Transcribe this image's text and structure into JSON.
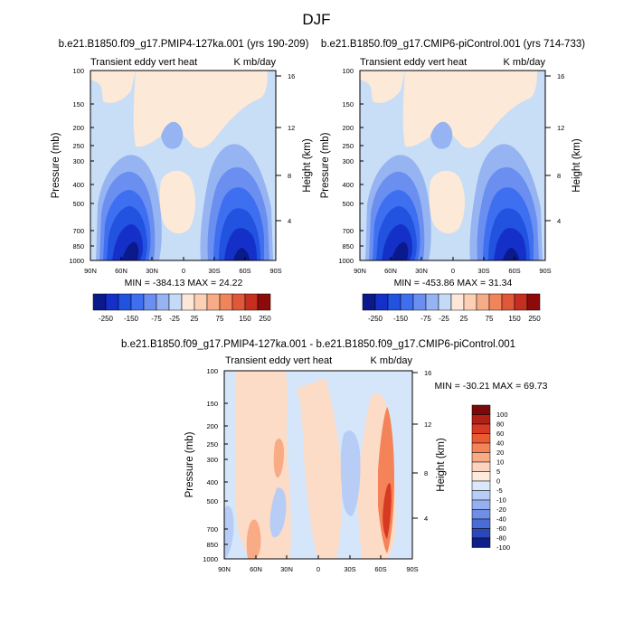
{
  "figure_title": "DJF",
  "chart_data": [
    {
      "type": "heatmap",
      "title": "b.e21.B1850.f09_g17.PMIP4-127ka.001 (yrs 190-209)",
      "left_subtitle": "Transient eddy vert heat",
      "right_subtitle": "K mb/day",
      "ylabel": "Pressure (mb)",
      "y2label": "Height (km)",
      "x_ticks": [
        "90N",
        "60N",
        "30N",
        "0",
        "30S",
        "60S",
        "90S"
      ],
      "y_ticks": [
        "100",
        "150",
        "200",
        "250",
        "300",
        "400",
        "500",
        "700",
        "850",
        "1000"
      ],
      "y2_ticks": [
        "4",
        "8",
        "12",
        "16"
      ],
      "stats": "MIN = -384.13   MAX =  24.22",
      "colorbar_labels": [
        "-250",
        "-150",
        "-75",
        "-25",
        "25",
        "75",
        "150",
        "250"
      ]
    },
    {
      "type": "heatmap",
      "title": "b.e21.B1850.f09_g17.CMIP6-piControl.001 (yrs 714-733)",
      "left_subtitle": "Transient eddy vert heat",
      "right_subtitle": "K mb/day",
      "ylabel": "Pressure (mb)",
      "y2label": "Height (km)",
      "x_ticks": [
        "90N",
        "60N",
        "30N",
        "0",
        "30S",
        "60S",
        "90S"
      ],
      "y_ticks": [
        "100",
        "150",
        "200",
        "250",
        "300",
        "400",
        "500",
        "700",
        "850",
        "1000"
      ],
      "y2_ticks": [
        "4",
        "8",
        "12",
        "16"
      ],
      "stats": "MIN = -453.86   MAX =  31.34",
      "colorbar_labels": [
        "-250",
        "-150",
        "-75",
        "-25",
        "25",
        "75",
        "150",
        "250"
      ]
    },
    {
      "type": "heatmap",
      "title": "b.e21.B1850.f09_g17.PMIP4-127ka.001 - b.e21.B1850.f09_g17.CMIP6-piControl.001",
      "left_subtitle": "Transient eddy vert heat",
      "right_subtitle": "K mb/day",
      "ylabel": "Pressure (mb)",
      "y2label": "Height (km)",
      "x_ticks": [
        "90N",
        "60N",
        "30N",
        "0",
        "30S",
        "60S",
        "90S"
      ],
      "y_ticks": [
        "100",
        "150",
        "200",
        "250",
        "300",
        "400",
        "500",
        "700",
        "850",
        "1000"
      ],
      "y2_ticks": [
        "4",
        "8",
        "12",
        "16"
      ],
      "stats": "MIN = -30.21   MAX =  69.73",
      "colorbar_labels": [
        "100",
        "80",
        "60",
        "40",
        "20",
        "10",
        "5",
        "0",
        "-5",
        "-10",
        "-20",
        "-40",
        "-60",
        "-80",
        "-100"
      ]
    }
  ],
  "colors": {
    "abs_scale": [
      "#0a1a8a",
      "#1430c8",
      "#2152e0",
      "#3e6ff0",
      "#6a8ff0",
      "#96b4f2",
      "#c5daf7",
      "#fde8d8",
      "#fbd0b5",
      "#f7ac88",
      "#f0855c",
      "#e0573a",
      "#c42f1f",
      "#8c0a0a"
    ],
    "diff_scale": [
      "#7a0a0a",
      "#b02016",
      "#d63a22",
      "#ec5a32",
      "#f5835a",
      "#f9ab86",
      "#fcd3bd",
      "#fdebdd",
      "#d9e8fb",
      "#b8cdf6",
      "#96b0ef",
      "#6f8fe6",
      "#4a6cd6",
      "#2c48b8",
      "#0f1f8a"
    ],
    "abs_bg": "#c8ddf6",
    "abs_positive": "#fde9d8",
    "diff_bg": "#d5e6fa",
    "diff_positive": "#fcdcc6",
    "frame": "#000000"
  }
}
